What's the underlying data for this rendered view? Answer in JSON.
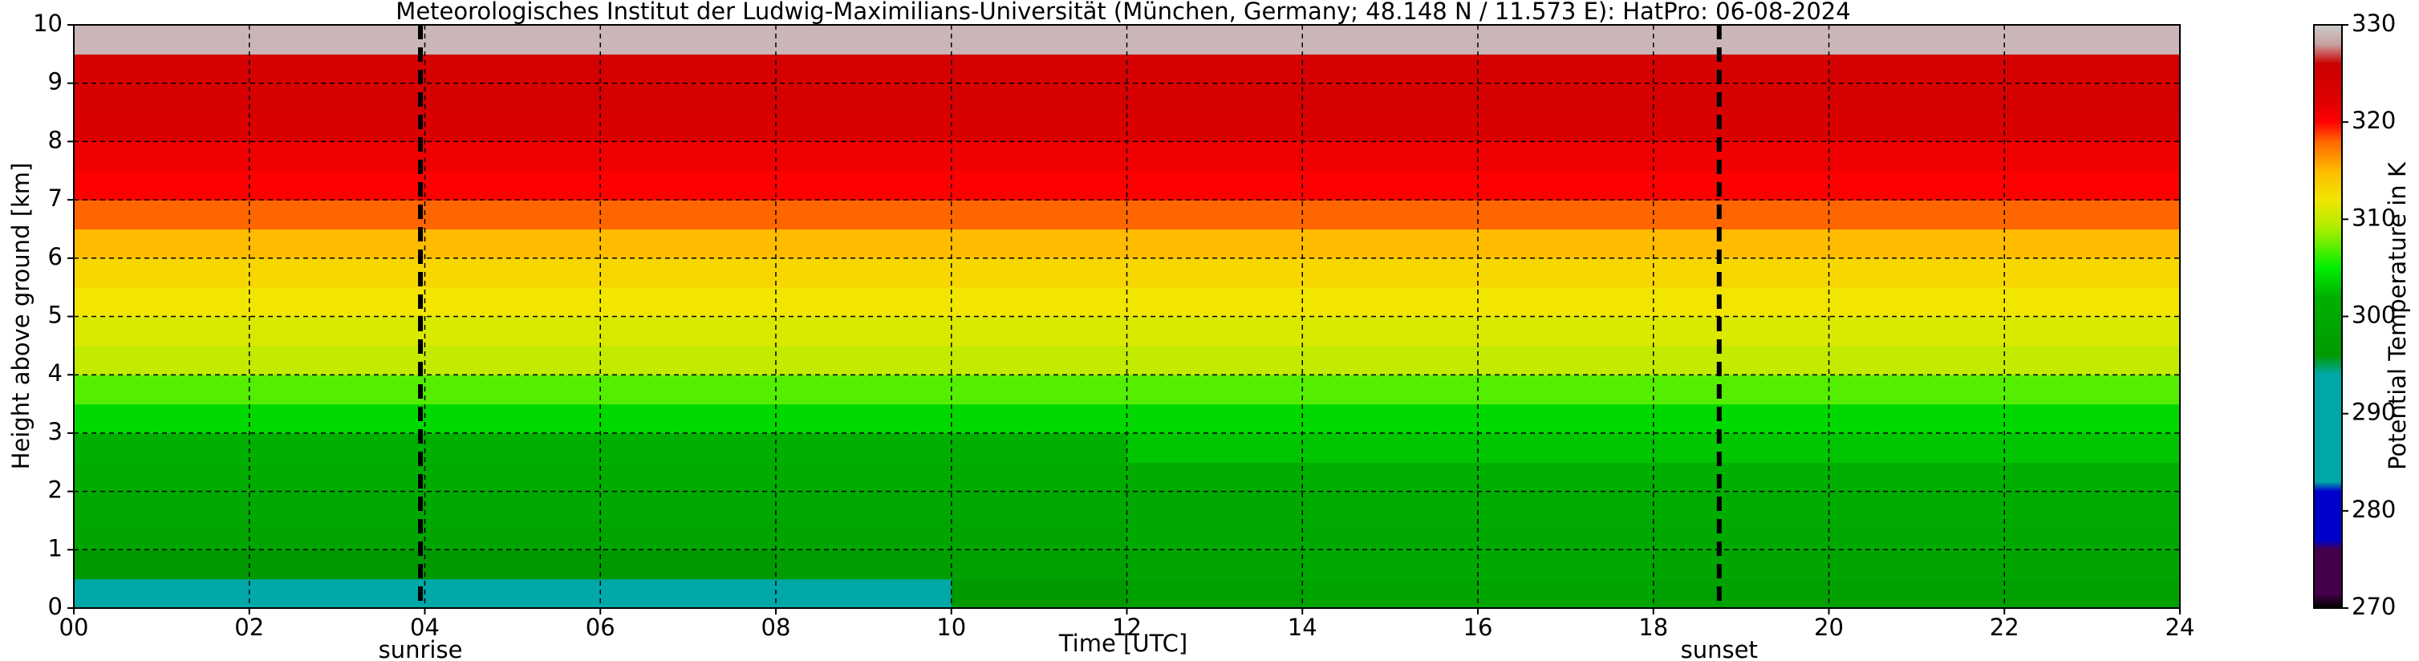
{
  "chart_data": {
    "type": "heatmap",
    "title": "Meteorologisches Institut der Ludwig-Maximilians-Universität (München, Germany; 48.148 N / 11.573 E):    HatPro: 06-08-2024",
    "x_label": "Time [UTC]",
    "y_label": "Height above ground [km]",
    "colorbar_label": "Potential Temperature in K",
    "xlim": [
      0,
      24
    ],
    "ylim": [
      0,
      10
    ],
    "xticks": [
      {
        "value": 0,
        "label": "00"
      },
      {
        "value": 2,
        "label": "02"
      },
      {
        "value": 4,
        "label": "04"
      },
      {
        "value": 6,
        "label": "06"
      },
      {
        "value": 8,
        "label": "08"
      },
      {
        "value": 10,
        "label": "10"
      },
      {
        "value": 12,
        "label": "12"
      },
      {
        "value": 14,
        "label": "14"
      },
      {
        "value": 16,
        "label": "16"
      },
      {
        "value": 18,
        "label": "18"
      },
      {
        "value": 20,
        "label": "20"
      },
      {
        "value": 22,
        "label": "22"
      },
      {
        "value": 24,
        "label": "24"
      }
    ],
    "yticks": [
      0,
      1,
      2,
      3,
      4,
      5,
      6,
      7,
      8,
      9,
      10
    ],
    "grid": true,
    "clim": [
      270,
      330
    ],
    "cticks": [
      270,
      280,
      290,
      300,
      310,
      320,
      330
    ],
    "colormap": [
      [
        270,
        "#000000"
      ],
      [
        271.5,
        "#44004a"
      ],
      [
        276,
        "#44004a"
      ],
      [
        277,
        "#0000cc"
      ],
      [
        282,
        "#0000cc"
      ],
      [
        283,
        "#00a8a8"
      ],
      [
        294,
        "#00a8a8"
      ],
      [
        296,
        "#009a00"
      ],
      [
        302,
        "#00b000"
      ],
      [
        305,
        "#00ee00"
      ],
      [
        309,
        "#aaee00"
      ],
      [
        312,
        "#f2e600"
      ],
      [
        315,
        "#ffbb00"
      ],
      [
        318,
        "#ff6600"
      ],
      [
        320,
        "#ff0000"
      ],
      [
        322,
        "#e00000"
      ],
      [
        326,
        "#cc0000"
      ],
      [
        328,
        "#c8a0a0"
      ],
      [
        330,
        "#cccccc"
      ]
    ],
    "x_edges": [
      0,
      2,
      4,
      6,
      8,
      10,
      12,
      14,
      16,
      18,
      20,
      22,
      24
    ],
    "y_edges": [
      0,
      0.5,
      1,
      1.5,
      2,
      2.5,
      3,
      3.5,
      4,
      4.5,
      5,
      5.5,
      6,
      6.5,
      7,
      7.5,
      8,
      8.5,
      9,
      9.5,
      10
    ],
    "z": [
      [
        292,
        292,
        292,
        292,
        294,
        296,
        298,
        299,
        299,
        298,
        298,
        298
      ],
      [
        296,
        296,
        296,
        296,
        297,
        298,
        299,
        300,
        300,
        299,
        299,
        299
      ],
      [
        299,
        299,
        299,
        299,
        299,
        299,
        300,
        300,
        300,
        300,
        300,
        300
      ],
      [
        300,
        300,
        300,
        300,
        300,
        300,
        300,
        301,
        301,
        301,
        301,
        301
      ],
      [
        301,
        301,
        301,
        301,
        301,
        301,
        301,
        302,
        302,
        302,
        302,
        302
      ],
      [
        302,
        302,
        302,
        302,
        302,
        302,
        303,
        303,
        303,
        303,
        303,
        303
      ],
      [
        304,
        304,
        304,
        304,
        304,
        304,
        304,
        304,
        304,
        304,
        304,
        304
      ],
      [
        307,
        307,
        307,
        307,
        307,
        307,
        307,
        307,
        307,
        307,
        307,
        307
      ],
      [
        310,
        310,
        310,
        310,
        310,
        310,
        310,
        310,
        310,
        310,
        310,
        310
      ],
      [
        311,
        311,
        311,
        311,
        311,
        311,
        311,
        311,
        311,
        311,
        311,
        311
      ],
      [
        312,
        312,
        312,
        312,
        312,
        312,
        312,
        312,
        312,
        312,
        312,
        312
      ],
      [
        313,
        313,
        313,
        313,
        313,
        313,
        313,
        313,
        313,
        313,
        313,
        313
      ],
      [
        315,
        315,
        315,
        315,
        315,
        315,
        315,
        315,
        315,
        315,
        315,
        315
      ],
      [
        318,
        318,
        318,
        318,
        318,
        318,
        318,
        318,
        318,
        318,
        318,
        318
      ],
      [
        320,
        320,
        320,
        320,
        320,
        320,
        320,
        320,
        320,
        320,
        320,
        320
      ],
      [
        321,
        321,
        321,
        321,
        321,
        321,
        321,
        321,
        321,
        321,
        321,
        321
      ],
      [
        323,
        323,
        323,
        323,
        323,
        323,
        323,
        323,
        323,
        323,
        323,
        323
      ],
      [
        324,
        324,
        324,
        324,
        324,
        324,
        324,
        324,
        324,
        324,
        324,
        324
      ],
      [
        324,
        324,
        324,
        324,
        324,
        324,
        324,
        324,
        324,
        324,
        324,
        324
      ],
      [
        329,
        329,
        329,
        329,
        329,
        329,
        329,
        329,
        329,
        329,
        329,
        329
      ]
    ],
    "events": [
      {
        "x": 3.95,
        "label": "sunrise"
      },
      {
        "x": 18.75,
        "label": "sunset"
      }
    ]
  }
}
